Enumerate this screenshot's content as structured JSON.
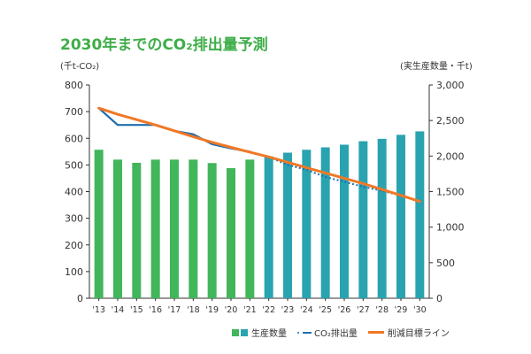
{
  "chart_data": {
    "type": "bar",
    "title": "2030年までのCO₂排出量予測",
    "ylabel": "(千t-CO₂)",
    "ylabel_right": "(実生産数量・千t)",
    "categories": [
      "'13",
      "'14",
      "'15",
      "'16",
      "'17",
      "'18",
      "'19",
      "'20",
      "'21",
      "'22",
      "'23",
      "'24",
      "'25",
      "'26",
      "'27",
      "'28",
      "'29",
      "'30"
    ],
    "ylim": [
      0,
      800
    ],
    "yticks": [
      "0",
      "100",
      "200",
      "300",
      "400",
      "500",
      "600",
      "700",
      "800"
    ],
    "ylim_right": [
      0,
      3000
    ],
    "yticks_right": [
      "0",
      "500",
      "1,000",
      "1,500",
      "2,000",
      "2,500",
      "3,000"
    ],
    "grid": false,
    "legend_position": "bottom-right",
    "series": [
      {
        "name": "生産数量",
        "type": "bar",
        "axis": "left",
        "values": [
          557,
          520,
          508,
          520,
          520,
          520,
          507,
          488,
          520,
          532,
          546,
          557,
          566,
          576,
          589,
          598,
          613,
          626
        ],
        "colors": [
          "#41b65a",
          "#41b65a",
          "#41b65a",
          "#41b65a",
          "#41b65a",
          "#41b65a",
          "#41b65a",
          "#41b65a",
          "#41b65a",
          "#2aa3b0",
          "#2aa3b0",
          "#2aa3b0",
          "#2aa3b0",
          "#2aa3b0",
          "#2aa3b0",
          "#2aa3b0",
          "#2aa3b0",
          "#2aa3b0"
        ]
      },
      {
        "name": "CO₂排出量",
        "type": "line",
        "axis": "left",
        "color": "#1e6fb0",
        "values": [
          713,
          650,
          650,
          650,
          628,
          615,
          578,
          562,
          550,
          530,
          500,
          482,
          455,
          437,
          418,
          403,
          385,
          365
        ]
      },
      {
        "name": "削減目標ライン",
        "type": "line",
        "axis": "left",
        "color": "#f07826",
        "values": [
          713,
          690,
          670,
          650,
          628,
          606,
          585,
          566,
          548,
          530,
          510,
          490,
          470,
          450,
          430,
          408,
          386,
          363
        ]
      }
    ]
  },
  "legend": {
    "bars_label": "生産数量",
    "co2_label": "CO₂排出量",
    "target_label": "削減目標ライン"
  },
  "colors": {
    "title": "#3fae49",
    "bar_actual": "#41b65a",
    "bar_forecast": "#2aa3b0",
    "co2_line": "#1e6fb0",
    "target_line": "#f07826"
  }
}
